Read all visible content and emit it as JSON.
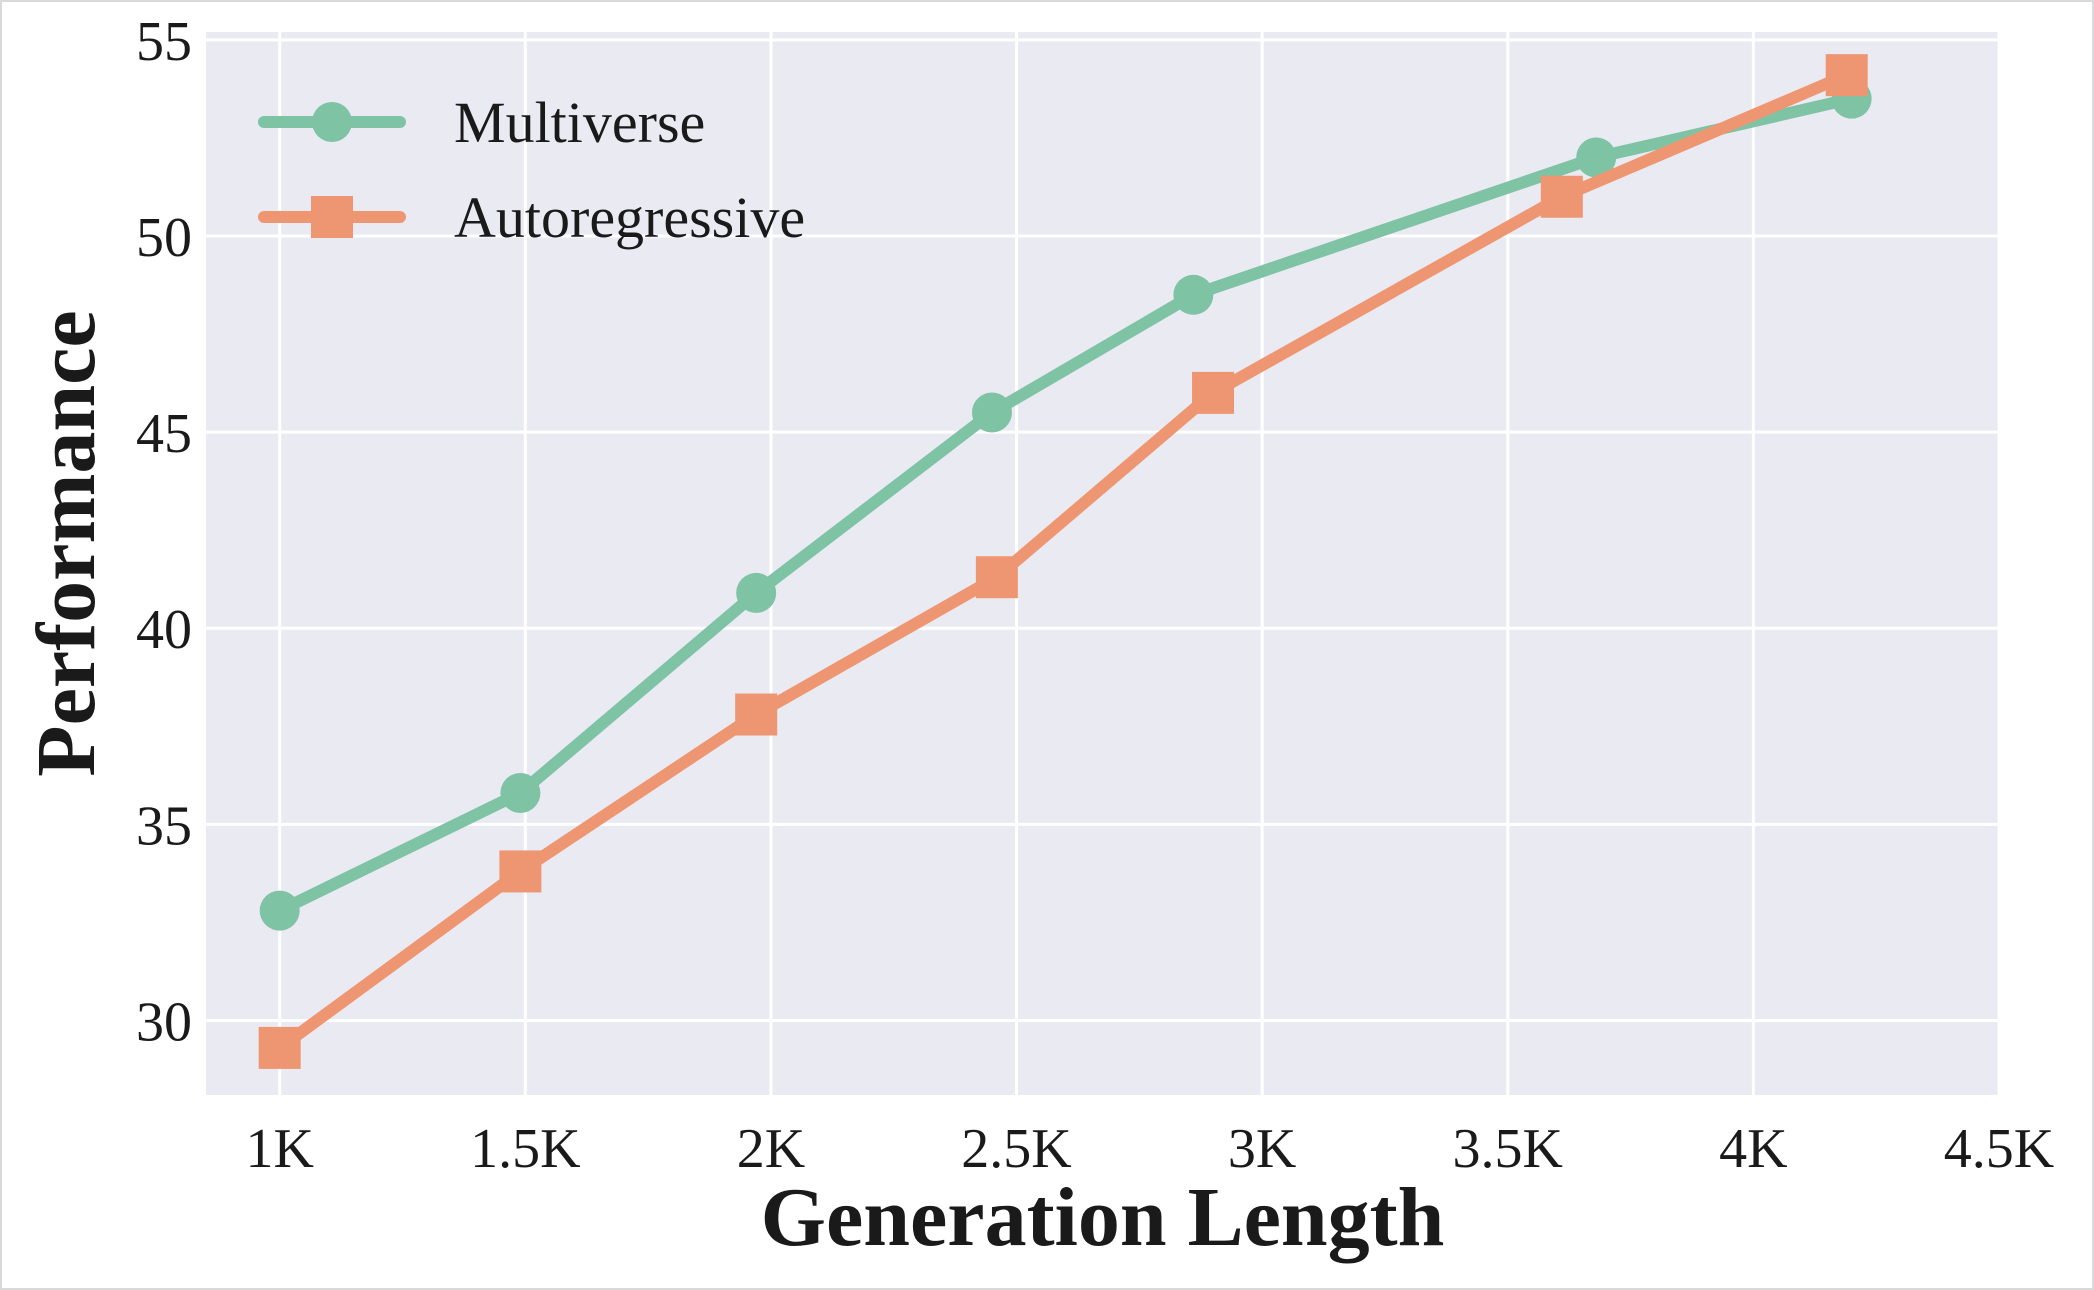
{
  "chart_data": {
    "type": "line",
    "xlabel": "Generation Length",
    "ylabel": "Performance",
    "xlim": [
      850,
      4500
    ],
    "ylim": [
      28.1,
      55.2
    ],
    "x_ticks": [
      {
        "value": 1000,
        "label": "1K"
      },
      {
        "value": 1500,
        "label": "1.5K"
      },
      {
        "value": 2000,
        "label": "2K"
      },
      {
        "value": 2500,
        "label": "2.5K"
      },
      {
        "value": 3000,
        "label": "3K"
      },
      {
        "value": 3500,
        "label": "3.5K"
      },
      {
        "value": 4000,
        "label": "4K"
      },
      {
        "value": 4500,
        "label": "4.5K"
      }
    ],
    "y_ticks": [
      {
        "value": 30,
        "label": "30"
      },
      {
        "value": 35,
        "label": "35"
      },
      {
        "value": 40,
        "label": "40"
      },
      {
        "value": 45,
        "label": "45"
      },
      {
        "value": 50,
        "label": "50"
      },
      {
        "value": 55,
        "label": "55"
      }
    ],
    "grid": true,
    "legend_position": "top-left",
    "background_color": "#eaeaf2",
    "series": [
      {
        "name": "Multiverse",
        "color": "#7fc3a5",
        "marker": "circle",
        "x": [
          1000,
          1490,
          1970,
          2450,
          2860,
          3680,
          4200
        ],
        "y": [
          32.8,
          35.8,
          40.9,
          45.5,
          48.5,
          52.0,
          53.5
        ]
      },
      {
        "name": "Autoregressive",
        "color": "#ee9672",
        "marker": "square",
        "x": [
          1000,
          1490,
          1970,
          2460,
          2900,
          3610,
          4190
        ],
        "y": [
          29.3,
          33.8,
          37.8,
          41.3,
          46.0,
          51.0,
          54.1
        ]
      }
    ]
  }
}
